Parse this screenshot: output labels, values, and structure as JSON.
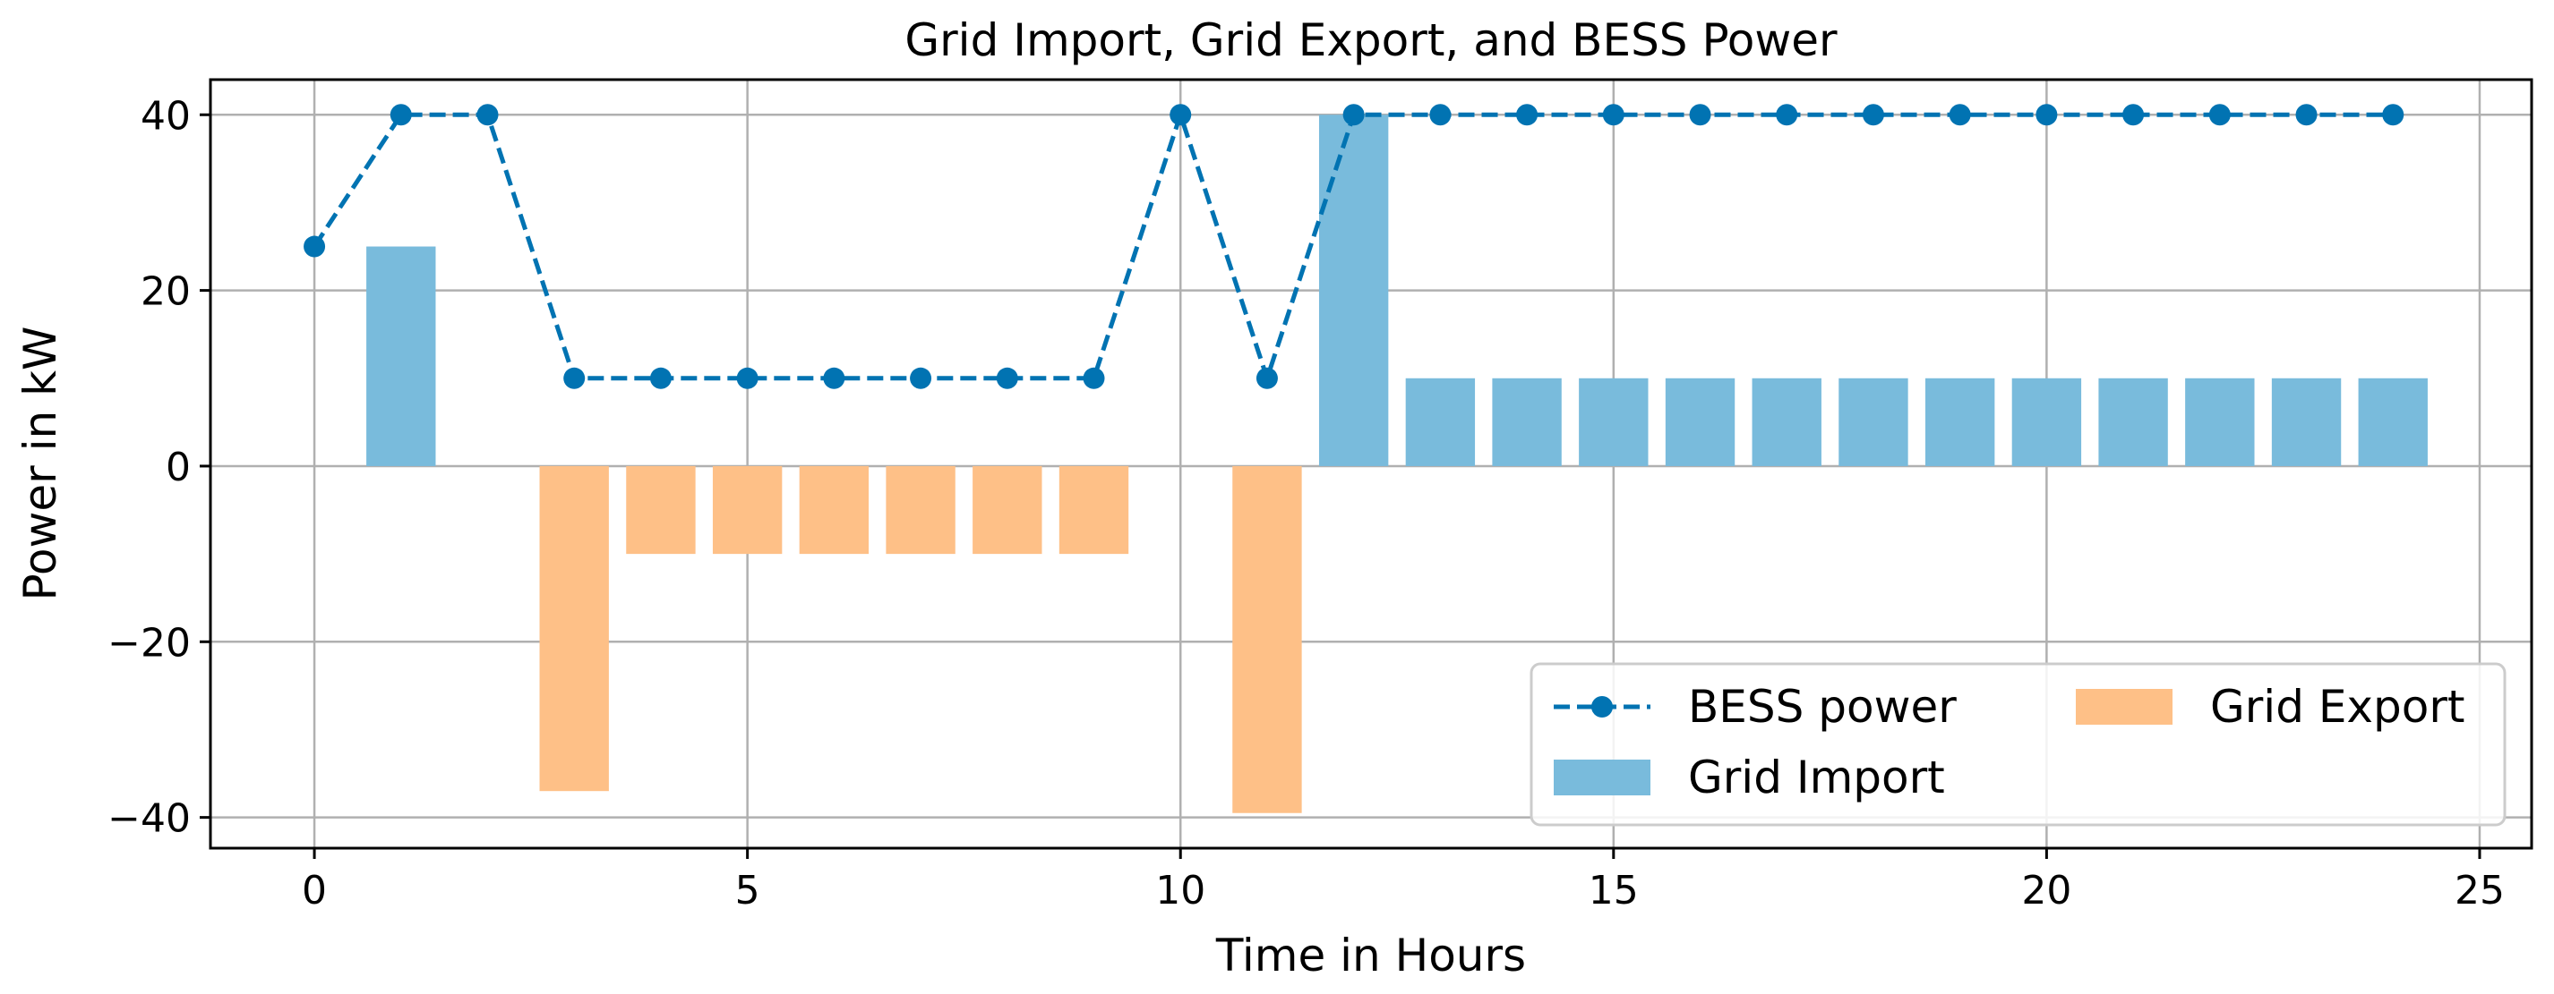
{
  "chart_data": {
    "type": "bar",
    "title": "Grid Import, Grid Export, and BESS Power",
    "xlabel": "Time in Hours",
    "ylabel": "Power in kW",
    "xlim": [
      -1.2,
      25.6
    ],
    "ylim": [
      -43.5,
      44
    ],
    "xticks": [
      0,
      5,
      10,
      15,
      20,
      25
    ],
    "yticks": [
      40,
      20,
      0,
      -20,
      -40
    ],
    "xtick_labels": [
      "0",
      "5",
      "10",
      "15",
      "20",
      "25"
    ],
    "ytick_labels": [
      "40",
      "20",
      "0",
      "−20",
      "−40"
    ],
    "grid": true,
    "legend_position": "lower-right",
    "bar_width": 0.8,
    "series": [
      {
        "name": "BESS power",
        "kind": "line",
        "style": "dashed-with-circle-markers",
        "color": "#0173b2",
        "x": [
          0,
          1,
          2,
          3,
          4,
          5,
          6,
          7,
          8,
          9,
          10,
          11,
          12,
          13,
          14,
          15,
          16,
          17,
          18,
          19,
          20,
          21,
          22,
          23,
          24
        ],
        "values": [
          25,
          40,
          40,
          10,
          10,
          10,
          10,
          10,
          10,
          10,
          40,
          10,
          40,
          40,
          40,
          40,
          40,
          40,
          40,
          40,
          40,
          40,
          40,
          40,
          40
        ]
      },
      {
        "name": "Grid Import",
        "kind": "bar",
        "color": "#79bbdc",
        "x": [
          1,
          12,
          13,
          14,
          15,
          16,
          17,
          18,
          19,
          20,
          21,
          22,
          23,
          24
        ],
        "values": [
          25,
          40,
          10,
          10,
          10,
          10,
          10,
          10,
          10,
          10,
          10,
          10,
          10,
          10
        ]
      },
      {
        "name": "Grid Export",
        "kind": "bar",
        "color": "#fec087",
        "x": [
          3,
          4,
          5,
          6,
          7,
          8,
          9,
          11
        ],
        "values": [
          -37,
          -10,
          -10,
          -10,
          -10,
          -10,
          -10,
          -39.5
        ]
      }
    ]
  }
}
